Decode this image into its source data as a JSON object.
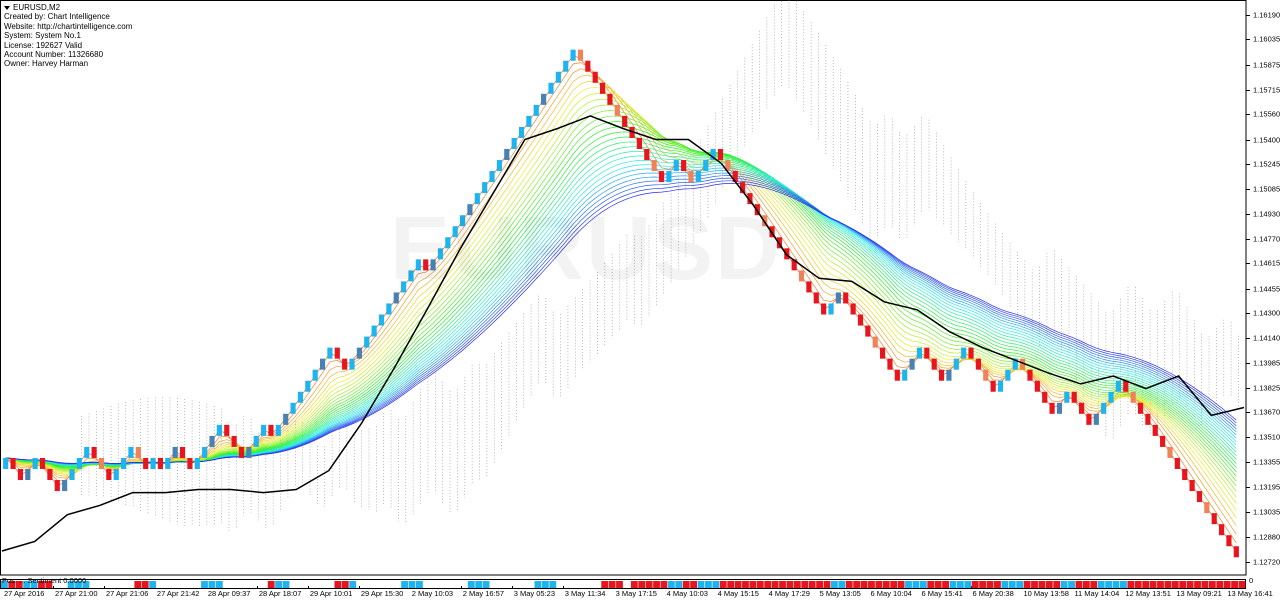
{
  "window": {
    "symbol_title": "EURUSD,M2",
    "info_lines": [
      "Created by: Chart Intelligence",
      "Website: http://chartintelligence.com",
      "System: System No.1",
      "License: 192627 Valid",
      "Account Number: 11326680",
      "Owner: Harvey Harman"
    ],
    "watermark": "EURUSD"
  },
  "price_axis": {
    "labels": [
      "1.16190",
      "1.16035",
      "1.15875",
      "1.15715",
      "1.15560",
      "1.15400",
      "1.15245",
      "1.15085",
      "1.14930",
      "1.14770",
      "1.14615",
      "1.14455",
      "1.14300",
      "1.14140",
      "1.13985",
      "1.13825",
      "1.13670",
      "1.13510",
      "1.13355",
      "1.13195",
      "1.13035",
      "1.12880",
      "1.12720"
    ]
  },
  "time_axis": {
    "labels": [
      "27 Apr 2016",
      "27 Apr 21:00",
      "27 Apr 21:06",
      "27 Apr 21:42",
      "28 Apr 09:37",
      "28 Apr 18:07",
      "29 Apr 10:01",
      "29 Apr 15:30",
      "2 May 10:03",
      "2 May 16:57",
      "3 May 05:23",
      "3 May 11:34",
      "3 May 17:15",
      "4 May 10:03",
      "4 May 15:15",
      "4 May 17:29",
      "5 May 13:05",
      "6 May 10:04",
      "6 May 15:41",
      "6 May 20:38",
      "10 May 13:58",
      "11 May 14:04",
      "12 May 13:51",
      "13 May 09:21",
      "13 May 16:41"
    ]
  },
  "sub_window": {
    "label": "Pos: ... Sentiment 0.0000",
    "scale_label": "0"
  },
  "colors": {
    "bull": "#1eb4f0",
    "bull_dim": "#4682b4",
    "bear": "#e8141e",
    "bear_dim": "#f0825a",
    "price_line": "#000000",
    "cloud": "#8c8c8c"
  },
  "chart_data": {
    "type": "renko",
    "title": "EURUSD,M2",
    "brick_size": 0.0007,
    "ylim": [
      1.1272,
      1.1619
    ],
    "bricks": [
      {
        "start": 1.1331,
        "dir": [
          1,
          -1,
          -1,
          1,
          1,
          -1,
          -1,
          -1,
          1,
          1,
          1,
          1,
          -1,
          -1,
          -1,
          1,
          1,
          1,
          -1,
          -1,
          1,
          -1,
          1,
          1,
          -1,
          -1,
          1,
          1,
          1,
          1,
          -1,
          -1,
          -1,
          1,
          1,
          1,
          -1,
          1,
          1,
          1,
          1,
          1,
          1,
          1,
          1,
          -1,
          -1,
          1,
          1,
          1,
          1,
          1,
          1,
          1,
          1,
          1,
          1,
          -1,
          1,
          1,
          1,
          1,
          1,
          1,
          1,
          1,
          1,
          1,
          1,
          1,
          1,
          1,
          1,
          1,
          1,
          1,
          1,
          1,
          -1,
          -1,
          -1,
          -1,
          -1,
          -1,
          -1,
          -1,
          -1,
          -1,
          -1,
          -1,
          1,
          1,
          -1,
          -1,
          1,
          1,
          1,
          -1,
          -1,
          -1,
          -1,
          -1,
          -1,
          -1,
          -1,
          -1,
          -1,
          -1,
          -1,
          -1,
          -1,
          -1,
          1,
          1,
          -1,
          -1,
          -1,
          -1,
          -1,
          -1,
          -1,
          -1,
          1,
          1,
          1,
          -1,
          -1,
          -1,
          1,
          1,
          1,
          -1,
          -1,
          -1,
          -1,
          1,
          1,
          1,
          -1,
          -1,
          -1,
          -1,
          -1,
          1,
          1,
          -1,
          -1,
          -1,
          1,
          1,
          1,
          1,
          -1,
          -1,
          -1,
          -1,
          -1,
          -1,
          -1,
          -1,
          -1,
          -1,
          -1,
          -1,
          -1,
          -1,
          -1,
          -1
        ]
      }
    ],
    "price_line": [
      1.1279,
      1.1285,
      1.1302,
      1.1308,
      1.1316,
      1.1316,
      1.1318,
      1.1318,
      1.1316,
      1.1318,
      1.133,
      1.136,
      1.1395,
      1.1432,
      1.147,
      1.1505,
      1.154,
      1.1547,
      1.1555,
      1.1547,
      1.154,
      1.154,
      1.1525,
      1.1498,
      1.1467,
      1.1452,
      1.145,
      1.1437,
      1.1432,
      1.1418,
      1.1408,
      1.14,
      1.1392,
      1.1385,
      1.139,
      1.1382,
      1.139,
      1.1365,
      1.137
    ],
    "xlabel": "",
    "ylabel": ""
  }
}
